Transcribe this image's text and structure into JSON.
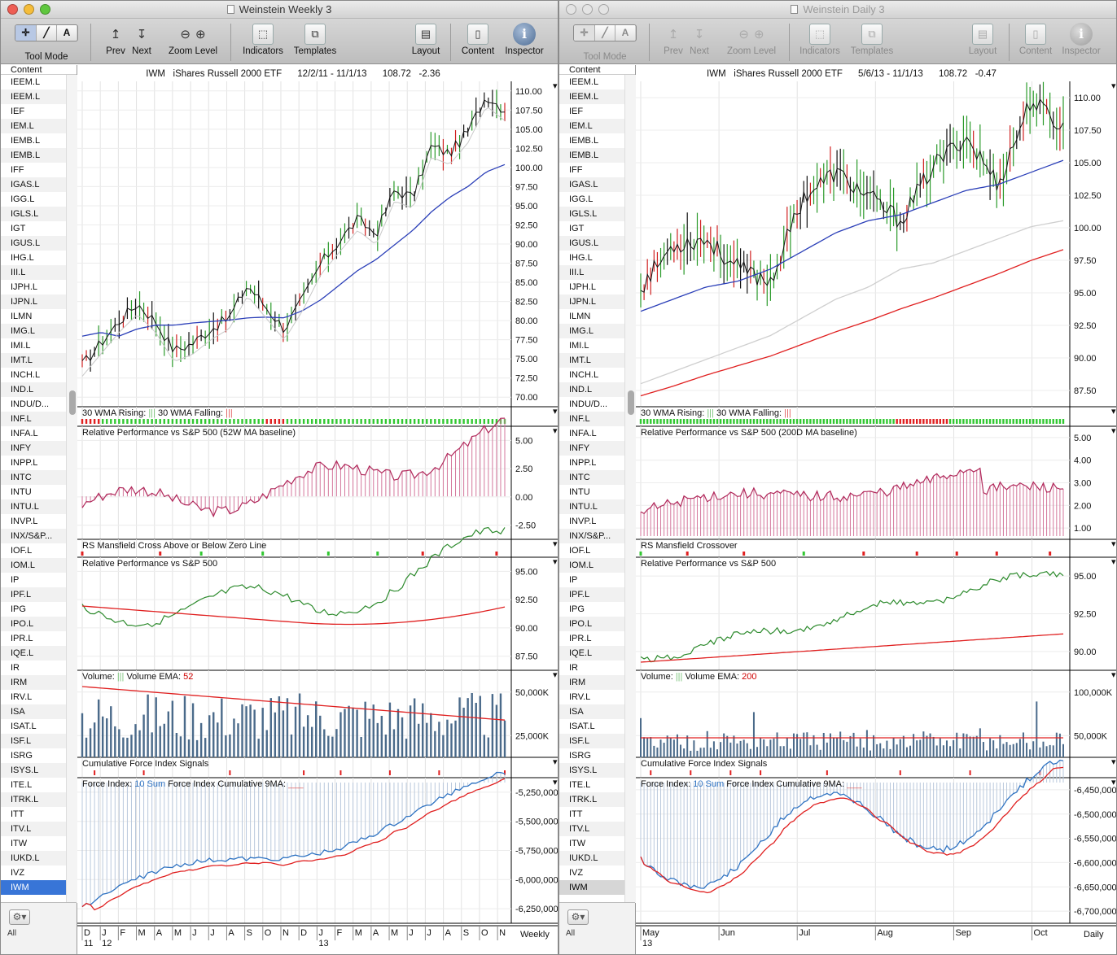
{
  "left": {
    "title": "Weinstein Weekly 3",
    "toolbar": {
      "tool_mode": "Tool Mode",
      "prev": "Prev",
      "next": "Next",
      "zoom_level": "Zoom Level",
      "indicators": "Indicators",
      "templates": "Templates",
      "layout": "Layout",
      "content": "Content",
      "inspector": "Inspector"
    },
    "sidebar": {
      "header": "Content",
      "all": "All",
      "items": [
        "IEEM.L",
        "IEEM.L",
        "IEF",
        "IEM.L",
        "IEMB.L",
        "IEMB.L",
        "IFF",
        "IGAS.L",
        "IGG.L",
        "IGLS.L",
        "IGT",
        "IGUS.L",
        "IHG.L",
        "III.L",
        "IJPH.L",
        "IJPN.L",
        "ILMN",
        "IMG.L",
        "IMI.L",
        "IMT.L",
        "INCH.L",
        "IND.L",
        "INDU/D...",
        "INF.L",
        "INFA.L",
        "INFY",
        "INPP.L",
        "INTC",
        "INTU",
        "INTU.L",
        "INVP.L",
        "INX/S&P...",
        "IOF.L",
        "IOM.L",
        "IP",
        "IPF.L",
        "IPG",
        "IPO.L",
        "IPR.L",
        "IQE.L",
        "IR",
        "IRM",
        "IRV.L",
        "ISA",
        "ISAT.L",
        "ISF.L",
        "ISRG",
        "ISYS.L",
        "ITE.L",
        "ITRK.L",
        "ITT",
        "ITV.L",
        "ITW",
        "IUKD.L",
        "IVZ",
        "IWM"
      ],
      "selected": "IWM"
    },
    "chart": {
      "symbol": "IWM",
      "name": "iShares Russell 2000 ETF",
      "range": "12/2/11 - 11/1/13",
      "last": "108.72",
      "change": "-2.36",
      "periodicity": "Weekly",
      "panel_labels": {
        "wma": "30 WMA Rising:",
        "wma_falling": "30 WMA Falling:",
        "rp_ma": "Relative Performance vs S&P 500 (52W MA baseline)",
        "rs": "RS Mansfield Cross Above or Below Zero Line",
        "rp": "Relative Performance vs S&P 500",
        "vol": "Volume:",
        "vol_ema": "Volume EMA:",
        "vol_ema_val": "52",
        "cfi": "Cumulative Force Index Signals",
        "fi": "Force Index:",
        "fi_sum": "10 Sum",
        "fi_cum": "Force Index Cumulative 9MA:"
      },
      "price_ticks": [
        "110.00",
        "107.50",
        "105.00",
        "102.50",
        "100.00",
        "97.50",
        "95.00",
        "92.50",
        "90.00",
        "87.50",
        "85.00",
        "82.50",
        "80.00",
        "77.50",
        "75.00",
        "72.50",
        "70.00"
      ],
      "rp_ma_ticks": [
        "5.00",
        "2.50",
        "0.00",
        "-2.50"
      ],
      "rp_ticks": [
        "95.00",
        "92.50",
        "90.00",
        "87.50"
      ],
      "vol_ticks": [
        "50,000K",
        "25,000K"
      ],
      "fi_ticks": [
        "-5,250,000,",
        "-5,500,000,",
        "-5,750,000,",
        "-6,000,000,",
        "-6,250,000,"
      ],
      "months": [
        "D",
        "J",
        "F",
        "M",
        "A",
        "M",
        "J",
        "J",
        "A",
        "S",
        "O",
        "N",
        "D",
        "J",
        "F",
        "M",
        "A",
        "M",
        "J",
        "J",
        "A",
        "S",
        "O",
        "N"
      ],
      "years": [
        "11",
        "12",
        "13"
      ],
      "chart_data": {
        "type": "line",
        "title": "IWM iShares Russell 2000 ETF",
        "x": [
          "Dec-11",
          "Jan-12",
          "Feb-12",
          "Mar-12",
          "Apr-12",
          "May-12",
          "Jun-12",
          "Jul-12",
          "Aug-12",
          "Sep-12",
          "Oct-12",
          "Nov-12",
          "Dec-12",
          "Jan-13",
          "Feb-13",
          "Mar-13",
          "Apr-13",
          "May-13",
          "Jun-13",
          "Jul-13",
          "Aug-13",
          "Sep-13",
          "Oct-13",
          "Nov-13"
        ],
        "series": [
          {
            "values": [
              74,
              77,
              80,
              82.5,
              80,
              76,
              77,
              79,
              80.5,
              85,
              82,
              79,
              83,
              88,
              91,
              94,
              92,
              98,
              97,
              104,
              103,
              106,
              111,
              109
            ]
          },
          {
            "values": [
              78,
              78.5,
              78,
              79,
              79.5,
              79.5,
              79.8,
              80,
              80.2,
              80.5,
              80.6,
              80.5,
              81.5,
              83,
              85,
              87,
              88.5,
              90.5,
              92.5,
              95,
              97,
              98.5,
              100.5,
              101.5
            ]
          }
        ],
        "ylim": [
          69,
          112
        ]
      }
    }
  },
  "right": {
    "title": "Weinstein Daily 3",
    "toolbar": {
      "tool_mode": "Tool Mode",
      "prev": "Prev",
      "next": "Next",
      "zoom_level": "Zoom Level",
      "indicators": "Indicators",
      "templates": "Templates",
      "layout": "Layout",
      "content": "Content",
      "inspector": "Inspector"
    },
    "sidebar": {
      "header": "Content",
      "all": "All",
      "items": [
        "IEEM.L",
        "IEEM.L",
        "IEF",
        "IEM.L",
        "IEMB.L",
        "IEMB.L",
        "IFF",
        "IGAS.L",
        "IGG.L",
        "IGLS.L",
        "IGT",
        "IGUS.L",
        "IHG.L",
        "III.L",
        "IJPH.L",
        "IJPN.L",
        "ILMN",
        "IMG.L",
        "IMI.L",
        "IMT.L",
        "INCH.L",
        "IND.L",
        "INDU/D...",
        "INF.L",
        "INFA.L",
        "INFY",
        "INPP.L",
        "INTC",
        "INTU",
        "INTU.L",
        "INVP.L",
        "INX/S&P...",
        "IOF.L",
        "IOM.L",
        "IP",
        "IPF.L",
        "IPG",
        "IPO.L",
        "IPR.L",
        "IQE.L",
        "IR",
        "IRM",
        "IRV.L",
        "ISA",
        "ISAT.L",
        "ISF.L",
        "ISRG",
        "ISYS.L",
        "ITE.L",
        "ITRK.L",
        "ITT",
        "ITV.L",
        "ITW",
        "IUKD.L",
        "IVZ",
        "IWM"
      ],
      "selected": "IWM"
    },
    "chart": {
      "symbol": "IWM",
      "name": "iShares Russell 2000 ETF",
      "range": "5/6/13 - 11/1/13",
      "last": "108.72",
      "change": "-0.47",
      "periodicity": "Daily",
      "panel_labels": {
        "wma": "30 WMA Rising:",
        "wma_falling": "30 WMA Falling:",
        "rp_ma": "Relative Performance vs S&P 500 (200D MA baseline)",
        "rs": "RS Mansfield Crossover",
        "rp": "Relative Performance vs S&P 500",
        "vol": "Volume:",
        "vol_ema": "Volume EMA:",
        "vol_ema_val": "200",
        "cfi": "Cumulative Force Index Signals",
        "fi": "Force Index:",
        "fi_sum": "10 Sum",
        "fi_cum": "Force Index Cumulative 9MA:"
      },
      "price_ticks": [
        "110.00",
        "107.50",
        "105.00",
        "102.50",
        "100.00",
        "97.50",
        "95.00",
        "92.50",
        "90.00",
        "87.50"
      ],
      "rp_ma_ticks": [
        "5.00",
        "4.00",
        "3.00",
        "2.00",
        "1.00"
      ],
      "rp_ticks": [
        "95.00",
        "92.50",
        "90.00"
      ],
      "vol_ticks": [
        "100,000K",
        "50,000K"
      ],
      "fi_ticks": [
        "-6,450,000,",
        "-6,500,000,",
        "-6,550,000,",
        "-6,600,000,",
        "-6,650,000,",
        "-6,700,000,"
      ],
      "months": [
        "May",
        "Jun",
        "Jul",
        "Aug",
        "Sep",
        "Oct"
      ],
      "years": [
        "13"
      ],
      "chart_data": {
        "type": "line",
        "title": "IWM iShares Russell 2000 ETF",
        "x": [
          "May-6",
          "May-20",
          "Jun-3",
          "Jun-17",
          "Jul-1",
          "Jul-15",
          "Jul-29",
          "Aug-12",
          "Aug-26",
          "Sep-9",
          "Sep-23",
          "Oct-7",
          "Oct-21",
          "Nov-1"
        ],
        "series": [
          {
            "values": [
              95.5,
              99,
              99.5,
              97,
              96,
              103,
              105,
              103,
              101,
              105.5,
              108,
              104,
              111,
              108.7
            ]
          },
          {
            "values": [
              93.5,
              94.5,
              95.5,
              96,
              97,
              98.5,
              100,
              101,
              101.5,
              102.5,
              103.5,
              104,
              105,
              106
            ]
          },
          {
            "values": [
              87.5,
              88.5,
              89.5,
              90.5,
              91.5,
              93,
              94.5,
              95.5,
              97,
              97.5,
              98.5,
              99.5,
              100.5,
              101
            ]
          },
          {
            "values": [
              86.5,
              87.3,
              88.2,
              89,
              89.8,
              90.8,
              91.8,
              92.7,
              93.7,
              94.6,
              95.6,
              96.6,
              97.7,
              98.6
            ]
          }
        ],
        "ylim": [
          86,
          112
        ]
      }
    }
  }
}
